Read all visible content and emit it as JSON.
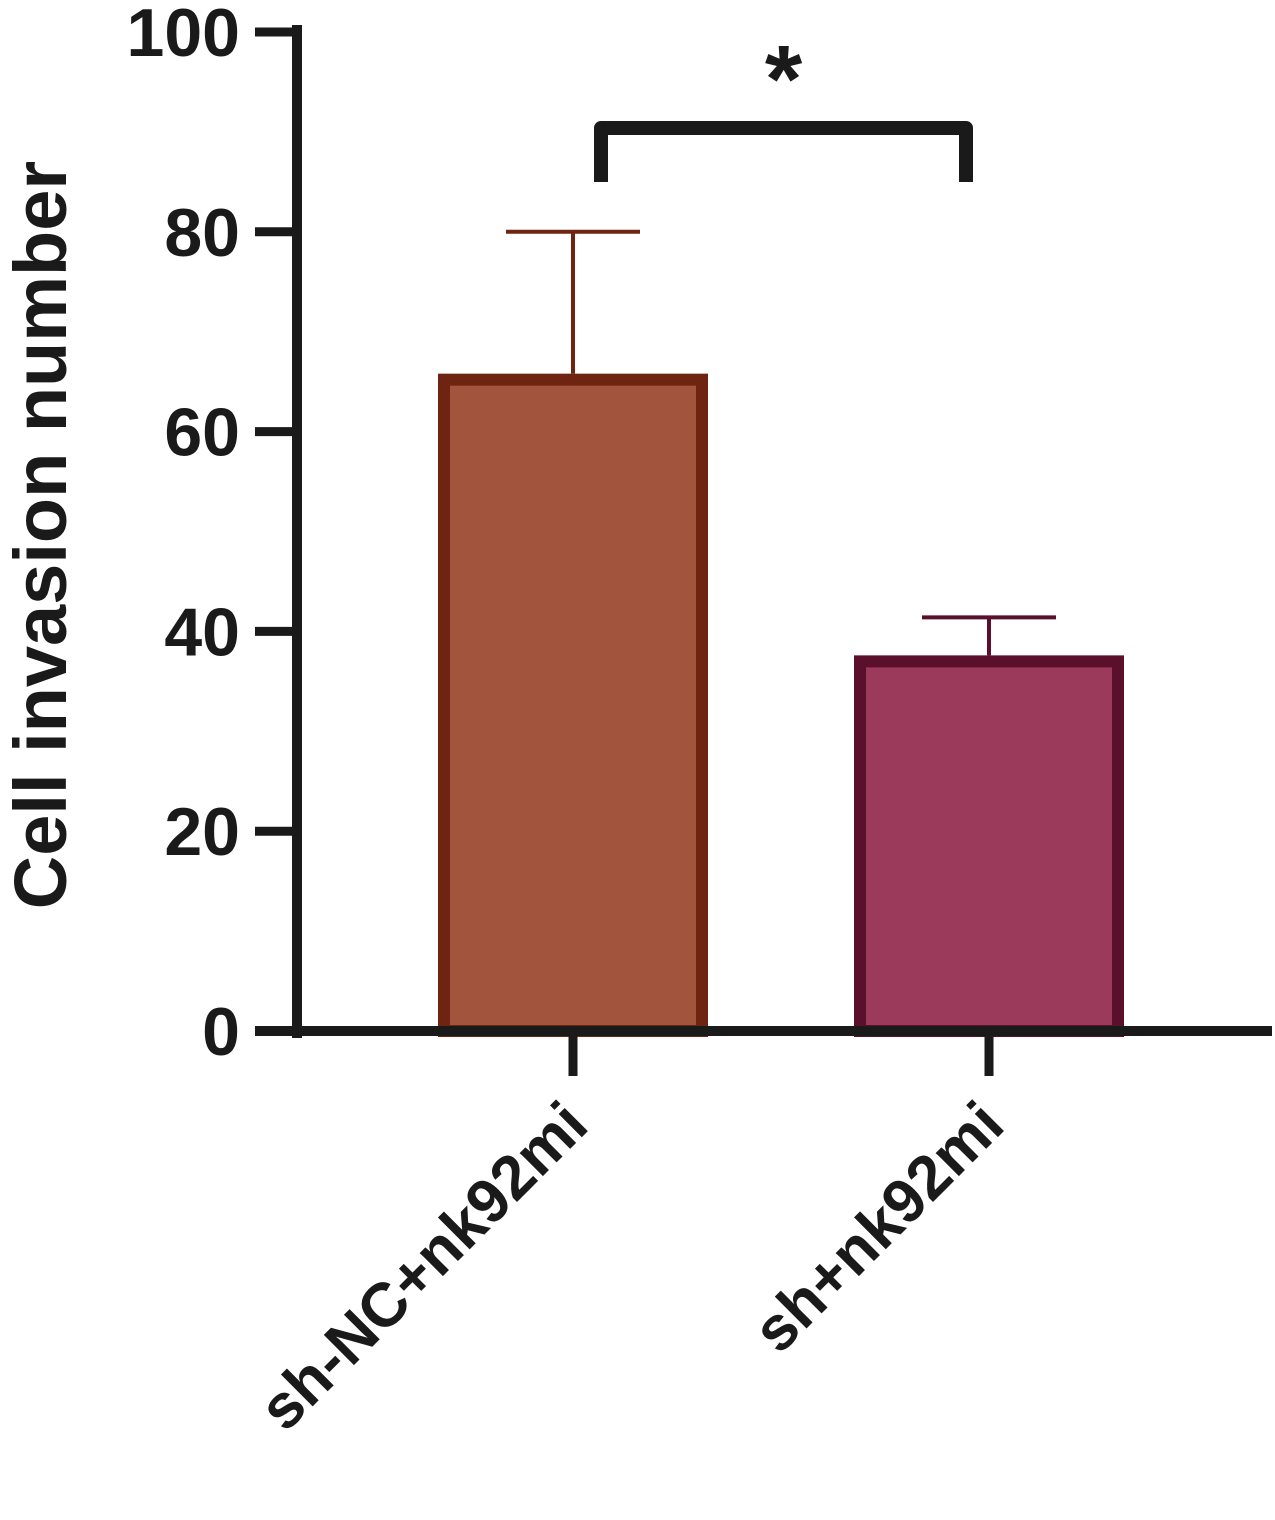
{
  "chart_data": {
    "type": "bar",
    "title": "",
    "ylabel": "Cell invasion number",
    "xlabel": "",
    "ylim": [
      0,
      100
    ],
    "yticks": [
      0,
      20,
      40,
      60,
      80,
      100
    ],
    "ytick_labels": [
      "0",
      "20",
      "40",
      "60",
      "80",
      "100"
    ],
    "categories": [
      "sh-NC+nk92mi",
      "sh+nk92mi"
    ],
    "values": [
      65.8,
      37.6
    ],
    "error_upper": [
      80,
      41.4
    ],
    "fill_colors": [
      "#a3543c",
      "#9b3a5a"
    ],
    "edge_colors": [
      "#6e2410",
      "#5a0f2b"
    ],
    "grid": false,
    "significance": {
      "label": "*",
      "between": [
        0,
        1
      ]
    }
  }
}
